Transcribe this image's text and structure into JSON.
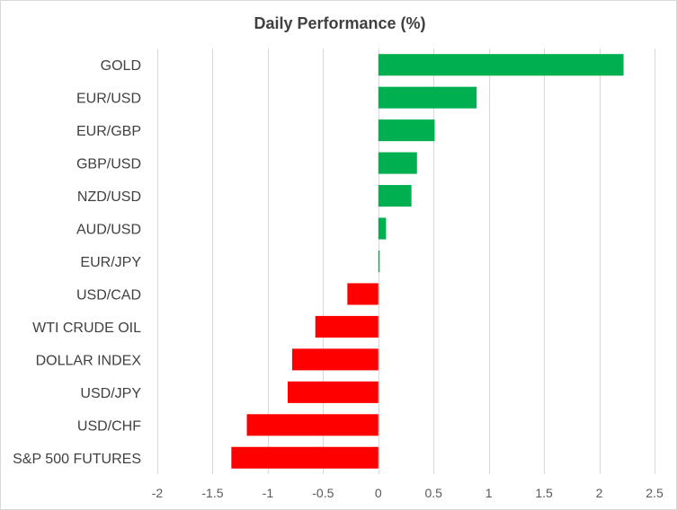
{
  "chart_data": {
    "type": "bar",
    "orientation": "horizontal",
    "title": "Daily Performance (%)",
    "xlabel": "",
    "ylabel": "",
    "categories": [
      "GOLD",
      "EUR/USD",
      "EUR/GBP",
      "GBP/USD",
      "NZD/USD",
      "AUD/USD",
      "EUR/JPY",
      "USD/CAD",
      "WTI CRUDE OIL",
      "DOLLAR INDEX",
      "USD/JPY",
      "USD/CHF",
      "S&P 500 FUTURES"
    ],
    "values": [
      2.22,
      0.89,
      0.51,
      0.35,
      0.3,
      0.07,
      0.01,
      -0.28,
      -0.57,
      -0.78,
      -0.82,
      -1.19,
      -1.33
    ],
    "xlim": [
      -2,
      2.5
    ],
    "x_ticks": [
      "-2",
      "-1.5",
      "-1",
      "-0.5",
      "0",
      "0.5",
      "1",
      "1.5",
      "2",
      "2.5"
    ],
    "grid": true,
    "legend": "none",
    "colors": {
      "positive": "#00b050",
      "negative": "#ff0000",
      "grid": "#d9d9d9",
      "text": "#404040"
    }
  }
}
